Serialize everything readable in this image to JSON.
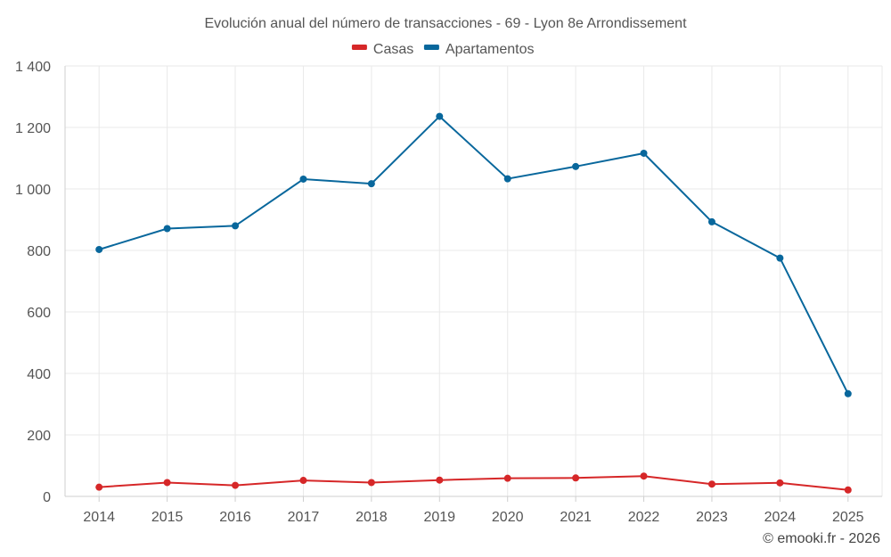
{
  "chart_data": {
    "type": "line",
    "title": "Evolución anual del número de transacciones - 69 - Lyon 8e Arrondissement",
    "categories": [
      "2014",
      "2015",
      "2016",
      "2017",
      "2018",
      "2019",
      "2020",
      "2021",
      "2022",
      "2023",
      "2024",
      "2025"
    ],
    "ylim": [
      0,
      1400
    ],
    "yticks": [
      0,
      200,
      400,
      600,
      800,
      1000,
      1200,
      1400
    ],
    "ytick_labels": [
      "0",
      "200",
      "400",
      "600",
      "800",
      "1 000",
      "1 200",
      "1 400"
    ],
    "xlabel": "",
    "ylabel": "",
    "grid": true,
    "legend_position": "top-center",
    "series": [
      {
        "name": "Casas",
        "color": "#d62728",
        "values": [
          30,
          45,
          36,
          52,
          45,
          53,
          59,
          60,
          66,
          40,
          44,
          21
        ]
      },
      {
        "name": "Apartamentos",
        "color": "#08679c",
        "values": [
          803,
          871,
          880,
          1032,
          1017,
          1236,
          1033,
          1073,
          1116,
          893,
          775,
          334
        ]
      }
    ]
  },
  "credit": "© emooki.fr - 2026"
}
